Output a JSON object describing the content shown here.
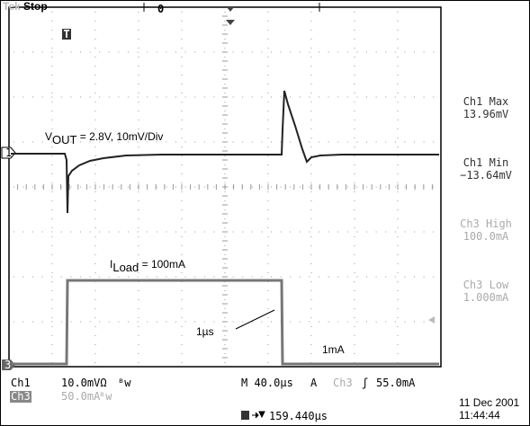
{
  "header": {
    "brand": "Tek",
    "state": "Stop",
    "trigger_position": "0",
    "trigger_marker": "T"
  },
  "markers": {
    "ch1": "1",
    "ch3": "3"
  },
  "annotations": {
    "vout": {
      "main": "V",
      "sub": "OUT",
      "rest": " = 2.8V, 10mV/Div"
    },
    "iload": {
      "main": "I",
      "sub": "Load",
      "rest": " = 100mA"
    },
    "rise": "1µs",
    "low": "1mA"
  },
  "measurements": [
    {
      "label": "Ch1 Max",
      "value": "13.96mV"
    },
    {
      "label": "Ch1 Min",
      "value": "−13.64mV"
    },
    {
      "label": "Ch3 High",
      "value": "100.0mA"
    },
    {
      "label": "Ch3 Low",
      "value": "1.000mA"
    }
  ],
  "footer": {
    "ch1": {
      "name": "Ch1",
      "scale": "10.0mVΩ",
      "bw": "ᴮw"
    },
    "ch3": {
      "name": "Ch3",
      "scale": "50.0mA",
      "bw": "ᴮw"
    },
    "timebase": "M 40.0µs",
    "trigger_mode": "A",
    "trigger_source": "Ch3",
    "trigger_slope": "ʃ",
    "trigger_level": "55.0mA",
    "position": "159.440µs",
    "date": "11 Dec 2001",
    "time": "11:44:44"
  }
}
